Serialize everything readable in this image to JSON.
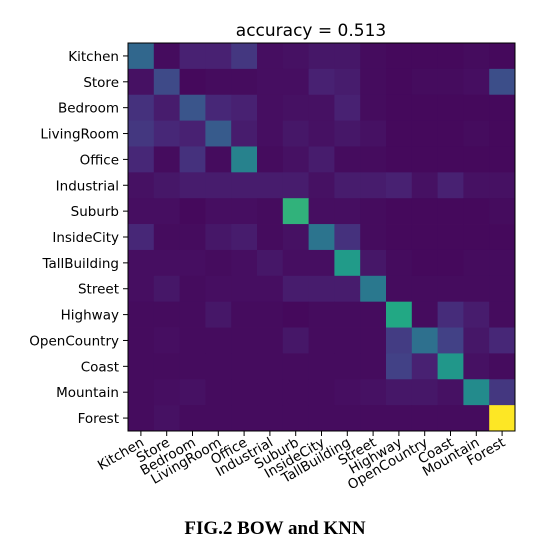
{
  "figure_caption": "FIG.2 BOW and KNN",
  "chart_data": {
    "type": "heatmap",
    "title": "accuracy = 0.513",
    "xlabel": "",
    "ylabel": "",
    "colormap": "viridis",
    "value_range": [
      0,
      1
    ],
    "grid": false,
    "labels": [
      "Kitchen",
      "Store",
      "Bedroom",
      "LivingRoom",
      "Office",
      "Industrial",
      "Suburb",
      "InsideCity",
      "TallBuilding",
      "Street",
      "Highway",
      "OpenCountry",
      "Coast",
      "Mountain",
      "Forest"
    ],
    "matrix": [
      [
        0.42,
        0.04,
        0.12,
        0.12,
        0.2,
        0.05,
        0.06,
        0.08,
        0.08,
        0.04,
        0.03,
        0.03,
        0.03,
        0.04,
        0.03
      ],
      [
        0.06,
        0.28,
        0.03,
        0.04,
        0.04,
        0.05,
        0.05,
        0.12,
        0.1,
        0.04,
        0.03,
        0.04,
        0.04,
        0.05,
        0.3
      ],
      [
        0.18,
        0.1,
        0.33,
        0.14,
        0.12,
        0.05,
        0.06,
        0.06,
        0.12,
        0.04,
        0.03,
        0.03,
        0.03,
        0.03,
        0.03
      ],
      [
        0.2,
        0.14,
        0.12,
        0.36,
        0.1,
        0.05,
        0.08,
        0.06,
        0.08,
        0.06,
        0.03,
        0.03,
        0.03,
        0.04,
        0.03
      ],
      [
        0.14,
        0.04,
        0.18,
        0.04,
        0.55,
        0.04,
        0.06,
        0.1,
        0.04,
        0.04,
        0.03,
        0.03,
        0.03,
        0.03,
        0.03
      ],
      [
        0.06,
        0.08,
        0.1,
        0.1,
        0.1,
        0.1,
        0.1,
        0.06,
        0.1,
        0.1,
        0.12,
        0.06,
        0.12,
        0.06,
        0.06
      ],
      [
        0.05,
        0.05,
        0.03,
        0.05,
        0.05,
        0.04,
        0.78,
        0.05,
        0.05,
        0.04,
        0.03,
        0.03,
        0.03,
        0.03,
        0.04
      ],
      [
        0.14,
        0.04,
        0.04,
        0.08,
        0.1,
        0.04,
        0.06,
        0.48,
        0.18,
        0.04,
        0.03,
        0.03,
        0.03,
        0.03,
        0.03
      ],
      [
        0.05,
        0.05,
        0.05,
        0.04,
        0.05,
        0.08,
        0.05,
        0.05,
        0.68,
        0.08,
        0.04,
        0.03,
        0.03,
        0.04,
        0.04
      ],
      [
        0.05,
        0.08,
        0.04,
        0.05,
        0.05,
        0.05,
        0.1,
        0.1,
        0.1,
        0.5,
        0.04,
        0.04,
        0.04,
        0.04,
        0.04
      ],
      [
        0.04,
        0.04,
        0.04,
        0.08,
        0.04,
        0.04,
        0.03,
        0.04,
        0.04,
        0.04,
        0.75,
        0.04,
        0.16,
        0.1,
        0.04
      ],
      [
        0.04,
        0.05,
        0.04,
        0.04,
        0.04,
        0.04,
        0.08,
        0.04,
        0.04,
        0.04,
        0.22,
        0.46,
        0.24,
        0.08,
        0.14
      ],
      [
        0.04,
        0.04,
        0.04,
        0.04,
        0.04,
        0.04,
        0.04,
        0.04,
        0.04,
        0.04,
        0.24,
        0.12,
        0.66,
        0.06,
        0.04
      ],
      [
        0.04,
        0.05,
        0.06,
        0.04,
        0.04,
        0.04,
        0.04,
        0.04,
        0.05,
        0.06,
        0.08,
        0.08,
        0.06,
        0.6,
        0.2
      ],
      [
        0.04,
        0.06,
        0.04,
        0.04,
        0.04,
        0.04,
        0.04,
        0.04,
        0.04,
        0.04,
        0.04,
        0.04,
        0.04,
        0.04,
        1.0
      ]
    ]
  }
}
